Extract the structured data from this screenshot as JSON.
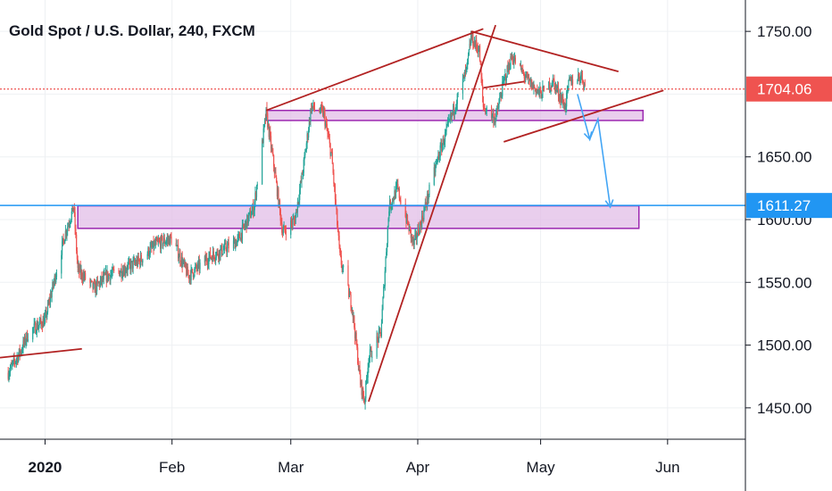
{
  "title": "Gold Spot / U.S. Dollar, 240, FXCM",
  "colors": {
    "up": "#26a69a",
    "down": "#ef5350",
    "trend_line": "#b22222",
    "zone_fill": "#e1bee7",
    "zone_stroke": "#9c27b0",
    "current_price": "#ef5350",
    "level_line": "#2196f3",
    "projection": "#42a5f5",
    "grid": "#eef0f3"
  },
  "chart_data": {
    "type": "candlestick",
    "symbol": "XAUUSD",
    "timeframe": "240",
    "ylim": [
      1425,
      1775
    ],
    "y_ticks": [
      {
        "value": 1450,
        "label": "1450.00"
      },
      {
        "value": 1500,
        "label": "1500.00"
      },
      {
        "value": 1550,
        "label": "1550.00"
      },
      {
        "value": 1600,
        "label": "1600.00"
      },
      {
        "value": 1650,
        "label": "1650.00"
      },
      {
        "value": 1750,
        "label": "1750.00"
      }
    ],
    "x_ticks": [
      {
        "date": "2020-01-01",
        "label": "2020",
        "bold": true
      },
      {
        "date": "2020-02-01",
        "label": "Feb"
      },
      {
        "date": "2020-03-01",
        "label": "Mar"
      },
      {
        "date": "2020-04-01",
        "label": "Apr"
      },
      {
        "date": "2020-05-01",
        "label": "May"
      },
      {
        "date": "2020-06-01",
        "label": "Jun"
      }
    ],
    "xlim": [
      "2019-12-21",
      "2020-06-20"
    ],
    "grid": true,
    "price_path": [
      [
        "2019-12-23",
        1478
      ],
      [
        "2019-12-26",
        1495
      ],
      [
        "2019-12-28",
        1510
      ],
      [
        "2020-01-01",
        1520
      ],
      [
        "2020-01-03",
        1548
      ],
      [
        "2020-01-06",
        1590
      ],
      [
        "2020-01-08",
        1610
      ],
      [
        "2020-01-09",
        1560
      ],
      [
        "2020-01-13",
        1545
      ],
      [
        "2020-01-16",
        1555
      ],
      [
        "2020-01-20",
        1560
      ],
      [
        "2020-01-24",
        1567
      ],
      [
        "2020-01-28",
        1580
      ],
      [
        "2020-02-01",
        1585
      ],
      [
        "2020-02-05",
        1555
      ],
      [
        "2020-02-10",
        1570
      ],
      [
        "2020-02-13",
        1575
      ],
      [
        "2020-02-17",
        1583
      ],
      [
        "2020-02-21",
        1610
      ],
      [
        "2020-02-24",
        1685
      ],
      [
        "2020-02-26",
        1640
      ],
      [
        "2020-02-28",
        1590
      ],
      [
        "2020-03-02",
        1600
      ],
      [
        "2020-03-04",
        1640
      ],
      [
        "2020-03-06",
        1690
      ],
      [
        "2020-03-09",
        1685
      ],
      [
        "2020-03-11",
        1650
      ],
      [
        "2020-03-13",
        1570
      ],
      [
        "2020-03-16",
        1530
      ],
      [
        "2020-03-18",
        1470
      ],
      [
        "2020-03-19",
        1455
      ],
      [
        "2020-03-20",
        1490
      ],
      [
        "2020-03-23",
        1510
      ],
      [
        "2020-03-25",
        1610
      ],
      [
        "2020-03-27",
        1625
      ],
      [
        "2020-03-31",
        1580
      ],
      [
        "2020-04-02",
        1600
      ],
      [
        "2020-04-06",
        1650
      ],
      [
        "2020-04-09",
        1680
      ],
      [
        "2020-04-13",
        1720
      ],
      [
        "2020-04-14",
        1745
      ],
      [
        "2020-04-16",
        1735
      ],
      [
        "2020-04-17",
        1690
      ],
      [
        "2020-04-20",
        1680
      ],
      [
        "2020-04-22",
        1710
      ],
      [
        "2020-04-24",
        1730
      ],
      [
        "2020-04-28",
        1710
      ],
      [
        "2020-05-01",
        1700
      ],
      [
        "2020-05-04",
        1710
      ],
      [
        "2020-05-07",
        1690
      ],
      [
        "2020-05-08",
        1710
      ],
      [
        "2020-05-11",
        1715
      ],
      [
        "2020-05-12",
        1704
      ]
    ],
    "current_price": {
      "value": 1704.06,
      "label": "1704.06"
    },
    "level": {
      "value": 1611.27,
      "label": "1611.27"
    },
    "zones": [
      {
        "x1": "2020-02-24",
        "x2": "2020-05-26",
        "y1": 1679,
        "y2": 1687
      },
      {
        "x1": "2020-01-09",
        "x2": "2020-05-25",
        "y1": 1593,
        "y2": 1611
      }
    ],
    "trend_lines": [
      {
        "x1": "2019-12-21",
        "y1": 1490,
        "x2": "2020-01-10",
        "y2": 1497
      },
      {
        "x1": "2020-02-24",
        "y1": 1687,
        "x2": "2020-04-17",
        "y2": 1752
      },
      {
        "x1": "2020-03-20",
        "y1": 1455,
        "x2": "2020-04-20",
        "y2": 1755
      },
      {
        "x1": "2020-04-14",
        "y1": 1750,
        "x2": "2020-05-20",
        "y2": 1718
      },
      {
        "x1": "2020-04-22",
        "y1": 1662,
        "x2": "2020-05-31",
        "y2": 1703
      },
      {
        "x1": "2020-04-17",
        "y1": 1705,
        "x2": "2020-04-27",
        "y2": 1710
      }
    ],
    "projection": [
      [
        "2020-05-10",
        1700
      ],
      [
        "2020-05-13",
        1664
      ],
      [
        "2020-05-15",
        1680
      ],
      [
        "2020-05-18",
        1610
      ]
    ]
  }
}
